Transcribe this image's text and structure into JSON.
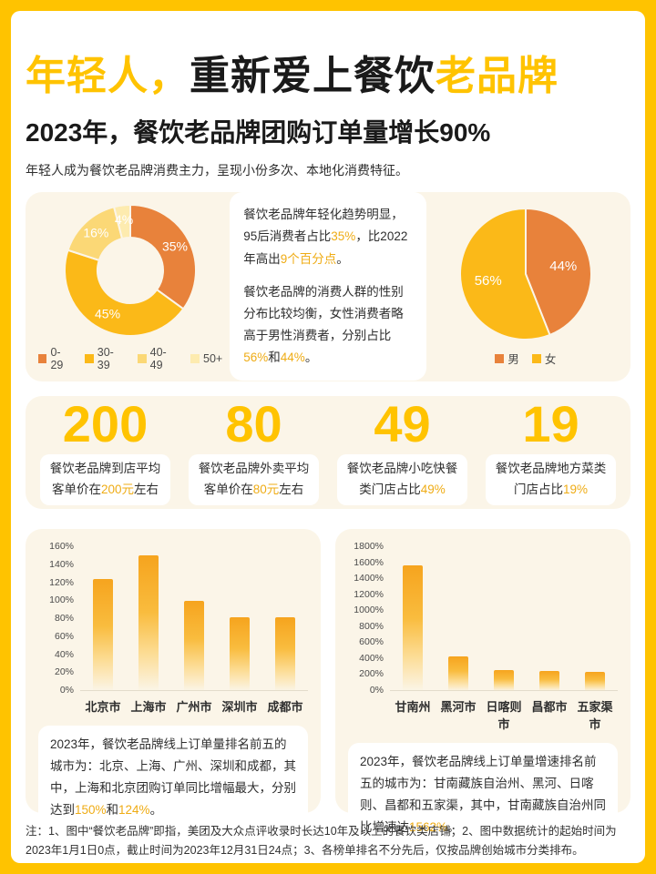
{
  "colors": {
    "accent_yellow": "#FFC300",
    "orange": "#E8823B",
    "chart_yellow": "#FBB918",
    "light_yellow": "#FBD876",
    "pale_yellow": "#FDEBAF",
    "panel_cream": "#FBF5E8",
    "highlight_text": "#EFAC15"
  },
  "header": {
    "title_part1": "年轻人，",
    "title_part2": "重新爱上餐饮",
    "title_part3": "老品牌",
    "subtitle": "2023年，餐饮老品牌团购订单量增长90%",
    "lead": "年轻人成为餐饮老品牌消费主力，呈现小份多次、本地化消费特征。"
  },
  "insights": {
    "para1": [
      {
        "t": "餐饮老品牌年轻化趋势明显，95后消费者占比"
      },
      {
        "t": "35%",
        "hl": true
      },
      {
        "t": "，比2022年高出"
      },
      {
        "t": "9个百分点",
        "hl": true
      },
      {
        "t": "。"
      }
    ],
    "para2": [
      {
        "t": "餐饮老品牌的消费人群的性别分布比较均衡，女性消费者略高于男性消费者，分别占比"
      },
      {
        "t": "56%",
        "hl": true
      },
      {
        "t": "和"
      },
      {
        "t": "44%",
        "hl": true
      },
      {
        "t": "。"
      }
    ]
  },
  "stats": [
    {
      "value": "200",
      "caption": [
        {
          "t": "餐饮老品牌到店平均"
        },
        {
          "br": true
        },
        {
          "t": "客单价在"
        },
        {
          "t": "200元",
          "hl": true
        },
        {
          "t": "左右"
        }
      ]
    },
    {
      "value": "80",
      "caption": [
        {
          "t": "餐饮老品牌外卖平均"
        },
        {
          "br": true
        },
        {
          "t": "客单价在"
        },
        {
          "t": "80元",
          "hl": true
        },
        {
          "t": "左右"
        }
      ]
    },
    {
      "value": "49",
      "caption": [
        {
          "t": "餐饮老品牌小吃快餐"
        },
        {
          "br": true
        },
        {
          "t": "类门店占比"
        },
        {
          "t": "49%",
          "hl": true
        }
      ]
    },
    {
      "value": "19",
      "caption": [
        {
          "t": "餐饮老品牌地方菜类"
        },
        {
          "br": true
        },
        {
          "t": "门店占比"
        },
        {
          "t": "19%",
          "hl": true
        }
      ]
    }
  ],
  "notes": {
    "city": [
      {
        "t": "2023年，餐饮老品牌线上订单量排名前五的城市为：北京、上海、广州、深圳和成都，其中，上海和北京团购订单同比增幅最大，分别达到"
      },
      {
        "t": "150%",
        "hl": true
      },
      {
        "t": "和"
      },
      {
        "t": "124%",
        "hl": true
      },
      {
        "t": "。"
      }
    ],
    "growth": [
      {
        "t": "2023年，餐饮老品牌线上订单量增速排名前五的城市为：甘南藏族自治州、黑河、日喀则、昌都和五家渠，其中，甘南藏族自治州同比增速达"
      },
      {
        "t": "1562%",
        "hl": true
      },
      {
        "t": "。"
      }
    ]
  },
  "footnote": "注：1、图中“餐饮老品牌”即指，美团及大众点评收录时长达10年及以上的餐饮类店铺；2、图中数据统计的起始时间为2023年1月1日0点，截止时间为2023年12月31日24点；3、各榜单排名不分先后，仅按品牌创始城市分类排布。",
  "chart_data": [
    {
      "type": "pie",
      "variant": "donut",
      "labels": [
        "0-29",
        "30-39",
        "40-49",
        "50+"
      ],
      "values": [
        35,
        45,
        16,
        4
      ],
      "value_labels": [
        "35%",
        "45%",
        "16%",
        "4%"
      ],
      "colors": [
        "#E8823B",
        "#FBB918",
        "#FBD876",
        "#FDEBAF"
      ],
      "legend_position": "bottom"
    },
    {
      "type": "pie",
      "variant": "pie",
      "labels": [
        "男",
        "女"
      ],
      "values": [
        44,
        56
      ],
      "value_labels": [
        "44%",
        "56%"
      ],
      "colors": [
        "#E8823B",
        "#FBB918"
      ],
      "legend_position": "bottom"
    },
    {
      "type": "bar",
      "categories": [
        "北京市",
        "上海市",
        "广州市",
        "深圳市",
        "成都市"
      ],
      "values": [
        124,
        150,
        100,
        82,
        82
      ],
      "ylim": [
        0,
        160
      ],
      "ytick_step": 20,
      "ytick_suffix": "%",
      "grid": false,
      "bar_color_gradient": [
        "#F6A41E",
        "#FCDC94"
      ]
    },
    {
      "type": "bar",
      "categories": [
        "甘南州",
        "黑河市",
        "日喀则市",
        "昌都市",
        "五家渠市"
      ],
      "values": [
        1562,
        430,
        260,
        250,
        230
      ],
      "ylim": [
        0,
        1800
      ],
      "ytick_step": 200,
      "ytick_suffix": "%",
      "grid": false,
      "bar_color_gradient": [
        "#F6A41E",
        "#FCDC94"
      ]
    }
  ]
}
